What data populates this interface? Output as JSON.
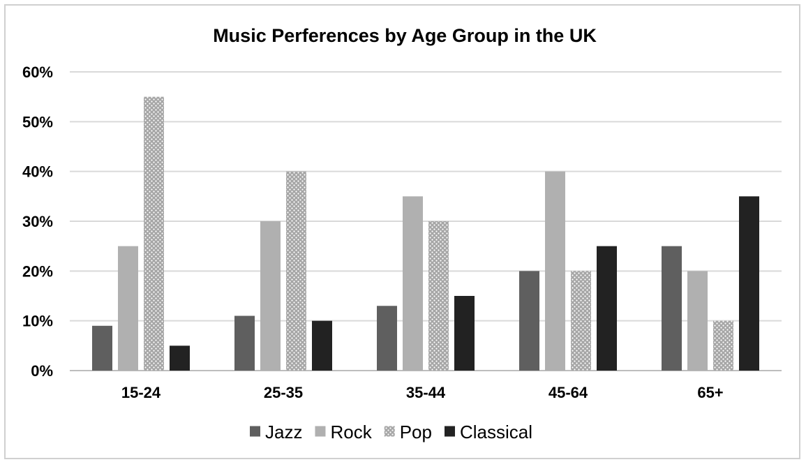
{
  "chart_data": {
    "type": "bar",
    "title": "Music Perferences by Age Group in the UK",
    "xlabel": "",
    "ylabel": "",
    "categories": [
      "15-24",
      "25-35",
      "35-44",
      "45-64",
      "65+"
    ],
    "series": [
      {
        "name": "Jazz",
        "values": [
          9,
          11,
          13,
          20,
          25
        ],
        "color": "#5f5f5f",
        "pattern": "solid"
      },
      {
        "name": "Rock",
        "values": [
          25,
          30,
          35,
          40,
          20
        ],
        "color": "#b0b0b0",
        "pattern": "solid"
      },
      {
        "name": "Pop",
        "values": [
          55,
          40,
          30,
          20,
          10
        ],
        "color": "#a8a8a8",
        "pattern": "dots"
      },
      {
        "name": "Classical",
        "values": [
          5,
          10,
          15,
          25,
          35
        ],
        "color": "#222222",
        "pattern": "solid"
      }
    ],
    "ylim": [
      0,
      60
    ],
    "yticks": [
      "0%",
      "10%",
      "20%",
      "30%",
      "40%",
      "50%",
      "60%"
    ],
    "ytick_values": [
      0,
      10,
      20,
      30,
      40,
      50,
      60
    ],
    "grid": true,
    "legend_position": "bottom"
  }
}
